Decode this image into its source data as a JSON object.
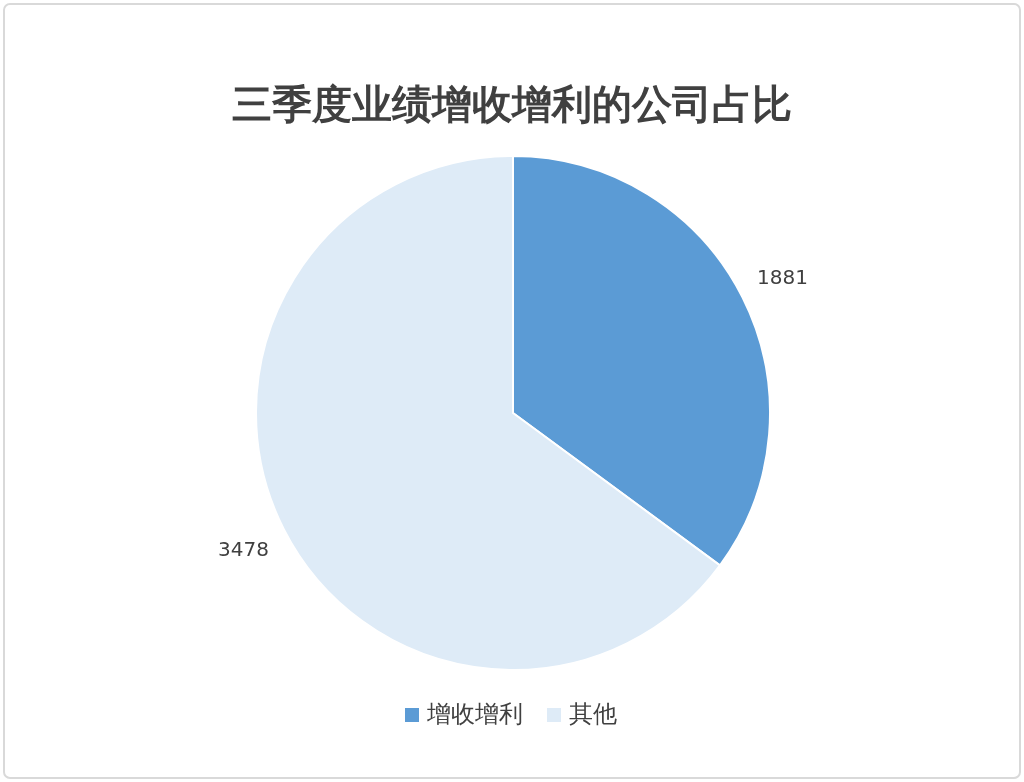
{
  "chart_data": {
    "type": "pie",
    "title": "三季度业绩增收增利的公司占比",
    "categories": [
      "增收增利",
      "其他"
    ],
    "values": [
      1881,
      3478
    ],
    "colors": [
      "#5b9bd5",
      "#deebf7"
    ],
    "data_labels": true,
    "legend": "bottom"
  }
}
